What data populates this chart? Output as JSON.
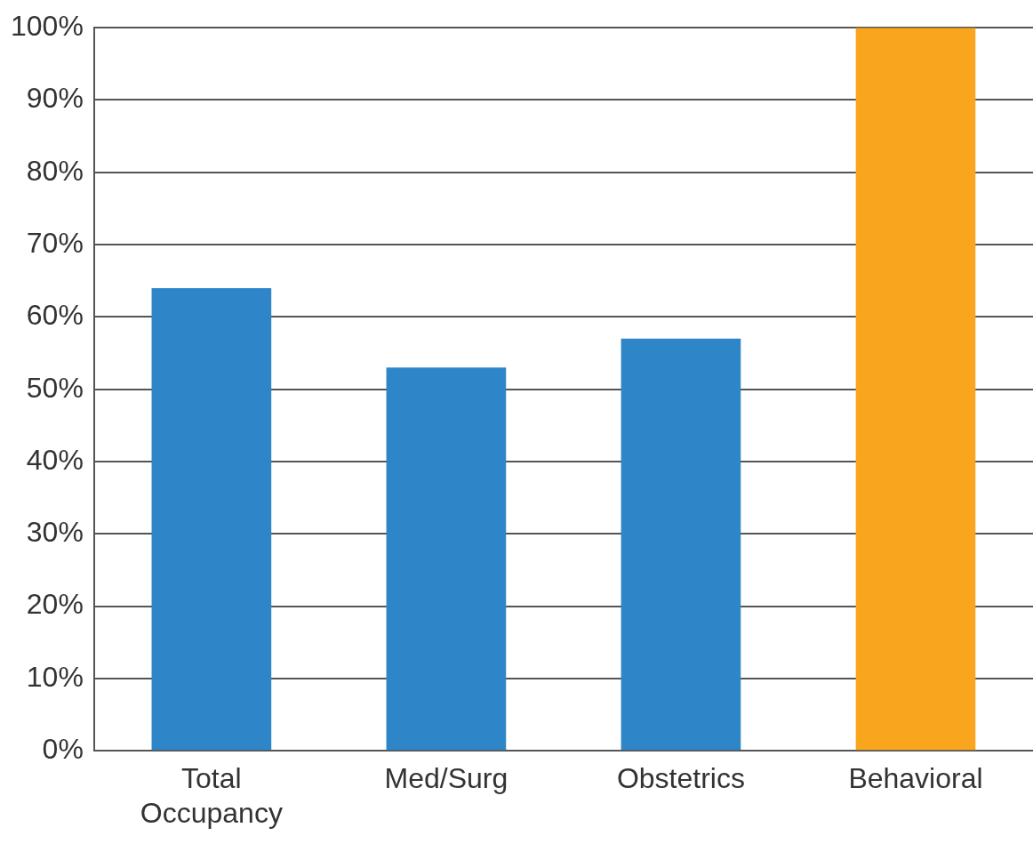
{
  "chart_data": {
    "type": "bar",
    "categories": [
      "Total Occupancy",
      "Med/Surg",
      "Obstetrics",
      "Behavioral"
    ],
    "values": [
      64,
      53,
      57,
      100
    ],
    "colors": [
      "#2e86c8",
      "#2e86c8",
      "#2e86c8",
      "#f9a61e"
    ],
    "ylim": [
      0,
      100
    ],
    "yticks": [
      {
        "value": 0,
        "label": "0%"
      },
      {
        "value": 10,
        "label": "10%"
      },
      {
        "value": 20,
        "label": "20%"
      },
      {
        "value": 30,
        "label": "30%"
      },
      {
        "value": 40,
        "label": "40%"
      },
      {
        "value": 50,
        "label": "50%"
      },
      {
        "value": 60,
        "label": "60%"
      },
      {
        "value": 70,
        "label": "70%"
      },
      {
        "value": 80,
        "label": "80%"
      },
      {
        "value": 90,
        "label": "90%"
      },
      {
        "value": 100,
        "label": "100%"
      }
    ],
    "grid": "y"
  }
}
